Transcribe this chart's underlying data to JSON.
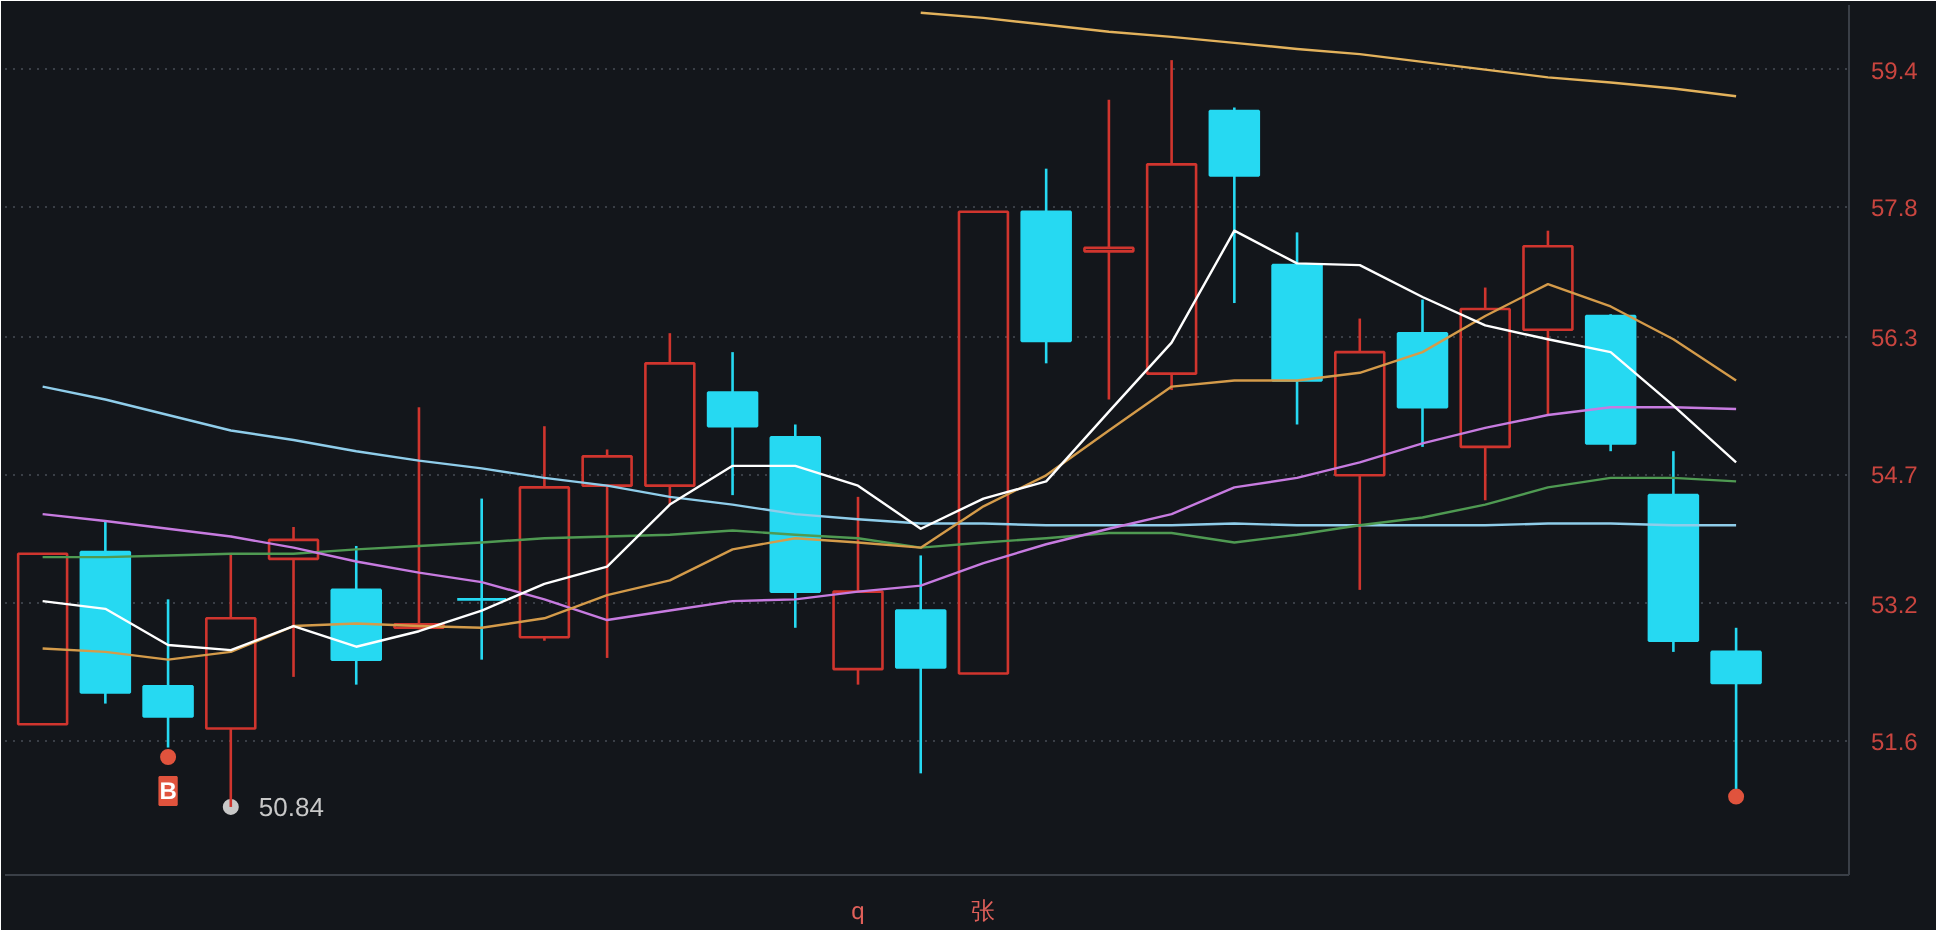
{
  "chart_data": {
    "type": "candlestick",
    "categories": [
      null,
      null,
      null,
      null,
      null,
      null,
      null,
      null,
      null,
      null,
      null,
      null,
      null,
      "q",
      null,
      "张",
      null,
      null,
      null,
      null,
      null,
      null,
      null,
      null,
      null,
      null,
      null,
      null
    ],
    "ohlc": [
      [
        51.8,
        53.78,
        51.8,
        53.78
      ],
      [
        53.8,
        54.16,
        52.04,
        52.17
      ],
      [
        52.24,
        53.25,
        51.53,
        51.89
      ],
      [
        51.75,
        53.78,
        50.84,
        53.03
      ],
      [
        53.72,
        54.09,
        52.35,
        53.94
      ],
      [
        53.36,
        53.87,
        52.26,
        52.55
      ],
      [
        52.92,
        55.48,
        52.9,
        52.96
      ],
      [
        53.25,
        54.42,
        52.55,
        53.25
      ],
      [
        52.81,
        55.26,
        52.77,
        54.55
      ],
      [
        54.57,
        54.99,
        52.57,
        54.91
      ],
      [
        54.57,
        56.34,
        54.35,
        55.99
      ],
      [
        55.65,
        56.12,
        54.46,
        55.26
      ],
      [
        55.13,
        55.28,
        52.92,
        53.34
      ],
      [
        52.44,
        54.44,
        52.26,
        53.34
      ],
      [
        53.12,
        53.76,
        51.23,
        52.46
      ],
      [
        52.39,
        57.75,
        52.39,
        57.75
      ],
      [
        57.75,
        58.25,
        55.99,
        56.25
      ],
      [
        57.29,
        59.05,
        55.57,
        57.33
      ],
      [
        55.87,
        59.51,
        55.68,
        58.3
      ],
      [
        58.92,
        58.96,
        56.69,
        58.17
      ],
      [
        57.13,
        57.51,
        55.28,
        55.79
      ],
      [
        54.69,
        56.51,
        53.36,
        56.12
      ],
      [
        56.34,
        56.73,
        55.02,
        55.48
      ],
      [
        55.02,
        56.87,
        54.4,
        56.62
      ],
      [
        56.38,
        57.53,
        55.39,
        57.35
      ],
      [
        56.54,
        56.56,
        54.97,
        55.06
      ],
      [
        54.46,
        54.97,
        52.64,
        52.77
      ],
      [
        52.64,
        52.92,
        51.05,
        52.28
      ]
    ],
    "colors": [
      "#d0352e",
      "#26d9f2",
      "#26d9f2",
      "#d0352e",
      "#d0352e",
      "#26d9f2",
      "#d0352e",
      "#26d9f2",
      "#d0352e",
      "#d0352e",
      "#d0352e",
      "#26d9f2",
      "#26d9f2",
      "#d0352e",
      "#26d9f2",
      "#d0352e",
      "#26d9f2",
      "#d0352e",
      "#d0352e",
      "#26d9f2",
      "#26d9f2",
      "#d0352e",
      "#26d9f2",
      "#d0352e",
      "#d0352e",
      "#26d9f2",
      "#26d9f2",
      "#26d9f2"
    ],
    "series": [
      {
        "type": "line",
        "color": "#8fcdea",
        "values": [
          55.72,
          55.57,
          55.39,
          55.21,
          55.1,
          54.97,
          54.86,
          54.77,
          54.66,
          54.57,
          54.44,
          54.35,
          54.24,
          54.18,
          54.13,
          54.13,
          54.11,
          54.11,
          54.11,
          54.13,
          54.11,
          54.11,
          54.11,
          54.11,
          54.13,
          54.13,
          54.11,
          54.11
        ]
      },
      {
        "type": "line",
        "color": "#4f9a52",
        "values": [
          53.74,
          53.74,
          53.76,
          53.78,
          53.78,
          53.83,
          53.87,
          53.91,
          53.96,
          53.98,
          54.0,
          54.05,
          54.0,
          53.96,
          53.85,
          53.91,
          53.96,
          54.02,
          54.02,
          53.91,
          54.0,
          54.11,
          54.2,
          54.35,
          54.55,
          54.66,
          54.66,
          54.62
        ]
      },
      {
        "type": "line",
        "color": "#c77be0",
        "values": [
          54.24,
          54.16,
          54.07,
          53.98,
          53.85,
          53.69,
          53.56,
          53.45,
          53.25,
          53.01,
          53.12,
          53.23,
          53.25,
          53.34,
          53.41,
          53.67,
          53.89,
          54.07,
          54.24,
          54.55,
          54.66,
          54.84,
          55.06,
          55.24,
          55.39,
          55.48,
          55.48,
          55.46
        ]
      },
      {
        "type": "line",
        "color": "#d49b4a",
        "values": [
          52.68,
          52.64,
          52.55,
          52.64,
          52.94,
          52.97,
          52.94,
          52.92,
          53.03,
          53.3,
          53.47,
          53.83,
          53.96,
          53.91,
          53.85,
          54.33,
          54.69,
          55.21,
          55.72,
          55.79,
          55.79,
          55.88,
          56.12,
          56.54,
          56.91,
          56.65,
          56.27,
          55.79
        ]
      },
      {
        "type": "line",
        "color": "#ffffff",
        "values": [
          53.23,
          53.14,
          52.72,
          52.66,
          52.94,
          52.7,
          52.88,
          53.12,
          53.43,
          53.63,
          54.35,
          54.8,
          54.8,
          54.57,
          54.07,
          54.42,
          54.62,
          55.43,
          56.23,
          57.53,
          57.15,
          57.13,
          56.76,
          56.43,
          56.27,
          56.12,
          55.5,
          54.84
        ]
      },
      {
        "type": "line",
        "color": "#e3b25c",
        "values": [
          null,
          null,
          null,
          null,
          null,
          null,
          null,
          null,
          null,
          null,
          null,
          null,
          null,
          null,
          60.06,
          60.0,
          59.92,
          59.84,
          59.78,
          59.71,
          59.64,
          59.58,
          59.49,
          59.4,
          59.31,
          59.25,
          59.18,
          59.09
        ]
      },
      {
        "type": "scatter",
        "color": "#e0533d",
        "marker": "circle",
        "values": [
          null,
          null,
          51.42,
          null,
          null,
          null,
          null,
          null,
          null,
          null,
          null,
          null,
          null,
          null,
          null,
          null,
          null,
          null,
          null,
          null,
          null,
          null,
          null,
          null,
          null,
          null,
          null,
          50.96
        ],
        "value_labels": [
          null,
          null,
          "B",
          null,
          null,
          null,
          null,
          null,
          null,
          null,
          null,
          null,
          null,
          null,
          null,
          null,
          null,
          null,
          null,
          null,
          null,
          null,
          null,
          null,
          null,
          null,
          null,
          null
        ]
      },
      {
        "type": "scatter",
        "color": "#c8c8c8",
        "marker": "circle",
        "values": [
          null,
          null,
          null,
          50.84,
          null,
          null,
          null,
          null,
          null,
          null,
          null,
          null,
          null,
          null,
          null,
          null,
          null,
          null,
          null,
          null,
          null,
          null,
          null,
          null,
          null,
          null,
          null,
          null
        ],
        "value_labels": [
          null,
          null,
          null,
          "50.84",
          null,
          null,
          null,
          null,
          null,
          null,
          null,
          null,
          null,
          null,
          null,
          null,
          null,
          null,
          null,
          null,
          null,
          null,
          null,
          null,
          null,
          null,
          null,
          null
        ]
      }
    ],
    "ylim": [
      50.05,
      60.15
    ],
    "yticks": [
      51.6,
      53.2,
      54.7,
      56.3,
      57.8,
      59.4
    ],
    "grid": "y"
  }
}
